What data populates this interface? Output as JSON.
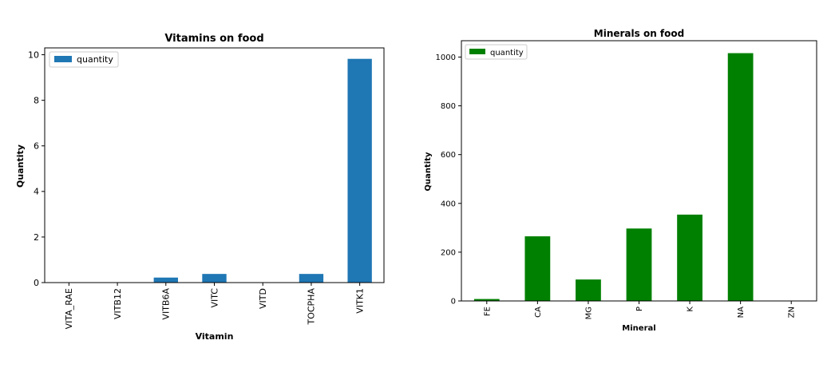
{
  "colors": {
    "vitamin_bar": "#1f77b4",
    "mineral_bar": "#008000"
  },
  "chart_data": [
    {
      "type": "bar",
      "title": "Vitamins on food",
      "xlabel": "Vitamin",
      "ylabel": "Quantity",
      "categories": [
        "VITA_RAE",
        "VITB12",
        "VITB6A",
        "VITC",
        "VITD",
        "TOCPHA",
        "VITK1"
      ],
      "series": [
        {
          "name": "quantity",
          "values": [
            0,
            0,
            0.22,
            0.38,
            0,
            0.38,
            9.82
          ]
        }
      ],
      "ylim": [
        0,
        10.3
      ],
      "yticks": [
        0,
        2,
        4,
        6,
        8,
        10
      ],
      "grid": false,
      "legend": "top-left"
    },
    {
      "type": "bar",
      "title": "Minerals on food",
      "xlabel": "Mineral",
      "ylabel": "Quantity",
      "categories": [
        "FE",
        "CA",
        "MG",
        "P",
        "K",
        "NA",
        "ZN"
      ],
      "series": [
        {
          "name": "quantity",
          "values": [
            8,
            265,
            88,
            297,
            354,
            1016,
            0
          ]
        }
      ],
      "ylim": [
        0,
        1067
      ],
      "yticks": [
        0,
        200,
        400,
        600,
        800,
        1000
      ],
      "grid": false,
      "legend": "top-left"
    }
  ]
}
